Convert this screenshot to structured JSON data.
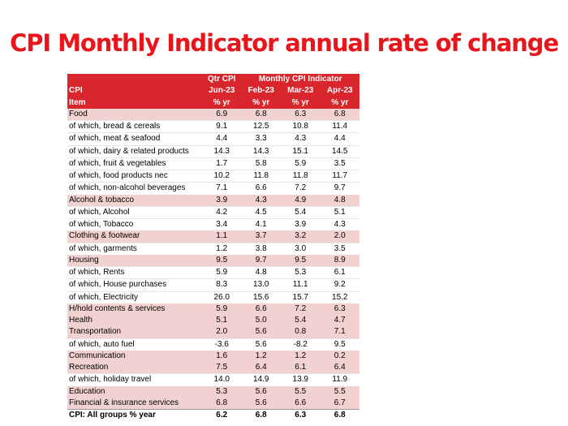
{
  "chart_data": {
    "type": "table",
    "title": "CPI Monthly Indicator annual rate of change",
    "header_rows": [
      [
        "",
        "Qtr CPI",
        "Monthly CPI Indicator",
        "",
        ""
      ],
      [
        "CPI",
        "Jun-23",
        "Feb-23",
        "Mar-23",
        "Apr-23"
      ],
      [
        "Item",
        "% yr",
        "% yr",
        "% yr",
        "% yr"
      ]
    ],
    "columns": [
      "Jun-23",
      "Feb-23",
      "Mar-23",
      "Apr-23"
    ],
    "rows": [
      {
        "label": "Food",
        "type": "cat",
        "values": [
          "6.9",
          "6.8",
          "6.3",
          "6.8"
        ]
      },
      {
        "label": "of which, bread & cereals",
        "type": "sub",
        "values": [
          "9.1",
          "12.5",
          "10.8",
          "11.4"
        ]
      },
      {
        "label": "of which, meat & seafood",
        "type": "sub",
        "values": [
          "4.4",
          "3.3",
          "4.3",
          "4.4"
        ]
      },
      {
        "label": "of which, dairy & related products",
        "type": "sub",
        "values": [
          "14.3",
          "14.3",
          "15.1",
          "14.5"
        ]
      },
      {
        "label": "of which, fruit & vegetables",
        "type": "sub",
        "values": [
          "1.7",
          "5.8",
          "5.9",
          "3.5"
        ]
      },
      {
        "label": "of which, food products nec",
        "type": "sub",
        "values": [
          "10.2",
          "11.8",
          "11.8",
          "11.7"
        ]
      },
      {
        "label": "of which, non-alcohol beverages",
        "type": "sub",
        "values": [
          "7.1",
          "6.6",
          "7.2",
          "9.7"
        ]
      },
      {
        "label": "Alcohol & tobacco",
        "type": "cat",
        "values": [
          "3.9",
          "4.3",
          "4.9",
          "4.8"
        ]
      },
      {
        "label": "of which, Alcohol",
        "type": "sub",
        "values": [
          "4.2",
          "4.5",
          "5.4",
          "5.1"
        ]
      },
      {
        "label": "of which, Tobacco",
        "type": "sub",
        "values": [
          "3.4",
          "4.1",
          "3.9",
          "4.3"
        ]
      },
      {
        "label": "Clothing & footwear",
        "type": "cat",
        "values": [
          "1.1",
          "3.7",
          "3.2",
          "2.0"
        ]
      },
      {
        "label": "of which, garments",
        "type": "sub",
        "values": [
          "1.2",
          "3.8",
          "3.0",
          "3.5"
        ]
      },
      {
        "label": "Housing",
        "type": "cat",
        "values": [
          "9.5",
          "9.7",
          "9.5",
          "8.9"
        ]
      },
      {
        "label": "of which, Rents",
        "type": "sub",
        "values": [
          "5.9",
          "4.8",
          "5.3",
          "6.1"
        ]
      },
      {
        "label": "of which, House purchases",
        "type": "sub",
        "values": [
          "8.3",
          "13.0",
          "11.1",
          "9.2"
        ]
      },
      {
        "label": "of which, Electricity",
        "type": "sub",
        "values": [
          "26.0",
          "15.6",
          "15.7",
          "15.2"
        ]
      },
      {
        "label": "H/hold contents & services",
        "type": "cat",
        "values": [
          "5.9",
          "6.6",
          "7.2",
          "6.3"
        ]
      },
      {
        "label": "Health",
        "type": "cat",
        "values": [
          "5.1",
          "5.0",
          "5.4",
          "4.7"
        ]
      },
      {
        "label": "Transportation",
        "type": "cat",
        "values": [
          "2.0",
          "5.6",
          "0.8",
          "7.1"
        ]
      },
      {
        "label": "of which, auto fuel",
        "type": "sub",
        "values": [
          "-3.6",
          "5.6",
          "-8.2",
          "9.5"
        ]
      },
      {
        "label": "Communication",
        "type": "cat",
        "values": [
          "1.6",
          "1.2",
          "1.2",
          "0.2"
        ]
      },
      {
        "label": "Recreation",
        "type": "cat",
        "values": [
          "7.5",
          "6.4",
          "6.1",
          "6.4"
        ]
      },
      {
        "label": "of which, holiday travel",
        "type": "sub",
        "values": [
          "14.0",
          "14.9",
          "13.9",
          "11.9"
        ]
      },
      {
        "label": "Education",
        "type": "cat",
        "values": [
          "5.3",
          "5.6",
          "5.5",
          "5.5"
        ]
      },
      {
        "label": "Financial & insurance services",
        "type": "cat",
        "values": [
          "6.8",
          "5.6",
          "6.6",
          "6.7"
        ]
      },
      {
        "label": "CPI: All groups % year",
        "type": "total",
        "values": [
          "6.2",
          "6.8",
          "6.3",
          "6.8"
        ]
      }
    ],
    "colors": {
      "title": "#e8151b",
      "header_bg": "#d9262d",
      "category_bg": "#f2d2d0"
    }
  }
}
